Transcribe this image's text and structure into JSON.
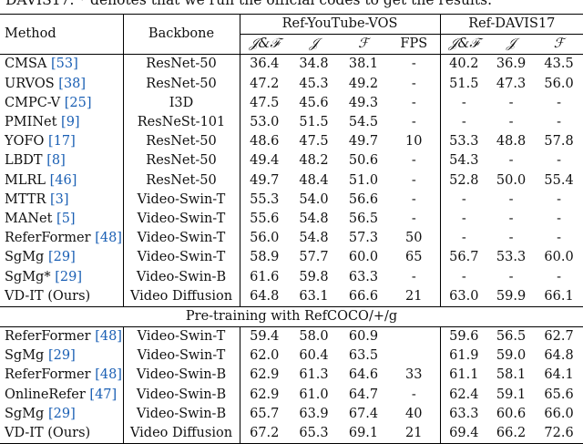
{
  "caption": "DAVIS17. * denotes that we run the official codes to get the results.",
  "headers": {
    "method": "Method",
    "backbone": "Backbone",
    "group1": "Ref-YouTube-VOS",
    "group2": "Ref-DAVIS17",
    "jf": "𝒥&ℱ",
    "j": "𝒥",
    "f": "ℱ",
    "fps": "FPS"
  },
  "section_label": "Pre-training with RefCOCO/+/g",
  "rows_a": [
    {
      "method": "CMSA",
      "ref": "[53]",
      "backbone": "ResNet-50",
      "yt_jf": "36.4",
      "yt_j": "34.8",
      "yt_f": "38.1",
      "fps": "-",
      "dv_jf": "40.2",
      "dv_j": "36.9",
      "dv_f": "43.5"
    },
    {
      "method": "URVOS",
      "ref": "[38]",
      "backbone": "ResNet-50",
      "yt_jf": "47.2",
      "yt_j": "45.3",
      "yt_f": "49.2",
      "fps": "-",
      "dv_jf": "51.5",
      "dv_j": "47.3",
      "dv_f": "56.0"
    },
    {
      "method": "CMPC-V",
      "ref": "[25]",
      "backbone": "I3D",
      "yt_jf": "47.5",
      "yt_j": "45.6",
      "yt_f": "49.3",
      "fps": "-",
      "dv_jf": "-",
      "dv_j": "-",
      "dv_f": "-"
    },
    {
      "method": "PMINet",
      "ref": "[9]",
      "backbone": "ResNeSt-101",
      "yt_jf": "53.0",
      "yt_j": "51.5",
      "yt_f": "54.5",
      "fps": "-",
      "dv_jf": "-",
      "dv_j": "-",
      "dv_f": "-"
    },
    {
      "method": "YOFO",
      "ref": "[17]",
      "backbone": "ResNet-50",
      "yt_jf": "48.6",
      "yt_j": "47.5",
      "yt_f": "49.7",
      "fps": "10",
      "dv_jf": "53.3",
      "dv_j": "48.8",
      "dv_f": "57.8"
    },
    {
      "method": "LBDT",
      "ref": "[8]",
      "backbone": "ResNet-50",
      "yt_jf": "49.4",
      "yt_j": "48.2",
      "yt_f": "50.6",
      "fps": "-",
      "dv_jf": "54.3",
      "dv_j": "-",
      "dv_f": "-"
    },
    {
      "method": "MLRL",
      "ref": "[46]",
      "backbone": "ResNet-50",
      "yt_jf": "49.7",
      "yt_j": "48.4",
      "yt_f": "51.0",
      "fps": "-",
      "dv_jf": "52.8",
      "dv_j": "50.0",
      "dv_f": "55.4"
    },
    {
      "method": "MTTR",
      "ref": "[3]",
      "backbone": "Video-Swin-T",
      "yt_jf": "55.3",
      "yt_j": "54.0",
      "yt_f": "56.6",
      "fps": "-",
      "dv_jf": "-",
      "dv_j": "-",
      "dv_f": "-"
    },
    {
      "method": "MANet",
      "ref": "[5]",
      "backbone": "Video-Swin-T",
      "yt_jf": "55.6",
      "yt_j": "54.8",
      "yt_f": "56.5",
      "fps": "-",
      "dv_jf": "-",
      "dv_j": "-",
      "dv_f": "-"
    },
    {
      "method": "ReferFormer",
      "ref": "[48]",
      "backbone": "Video-Swin-T",
      "yt_jf": "56.0",
      "yt_j": "54.8",
      "yt_f": "57.3",
      "fps": "50",
      "dv_jf": "-",
      "dv_j": "-",
      "dv_f": "-"
    },
    {
      "method": "SgMg",
      "ref": "[29]",
      "backbone": "Video-Swin-T",
      "yt_jf": "58.9",
      "yt_j": "57.7",
      "yt_f": "60.0",
      "fps": "65",
      "dv_jf": "56.7",
      "dv_j": "53.3",
      "dv_f": "60.0"
    },
    {
      "method": "SgMg*",
      "ref": "[29]",
      "backbone": "Video-Swin-B",
      "yt_jf": "61.6",
      "yt_j": "59.8",
      "yt_f": "63.3",
      "fps": "-",
      "dv_jf": "-",
      "dv_j": "-",
      "dv_f": "-"
    },
    {
      "method": "VD-IT (Ours)",
      "ref": "",
      "backbone": "Video Diffusion",
      "yt_jf": "64.8",
      "yt_j": "63.1",
      "yt_f": "66.6",
      "fps": "21",
      "dv_jf": "63.0",
      "dv_j": "59.9",
      "dv_f": "66.1",
      "bold": true
    }
  ],
  "rows_b": [
    {
      "method": "ReferFormer",
      "ref": "[48]",
      "backbone": "Video-Swin-T",
      "yt_jf": "59.4",
      "yt_j": "58.0",
      "yt_f": "60.9",
      "fps": "",
      "dv_jf": "59.6",
      "dv_j": "56.5",
      "dv_f": "62.7"
    },
    {
      "method": "SgMg",
      "ref": "[29]",
      "backbone": "Video-Swin-T",
      "yt_jf": "62.0",
      "yt_j": "60.4",
      "yt_f": "63.5",
      "fps": "",
      "dv_jf": "61.9",
      "dv_j": "59.0",
      "dv_f": "64.8"
    },
    {
      "method": "ReferFormer",
      "ref": "[48]",
      "backbone": "Video-Swin-B",
      "yt_jf": "62.9",
      "yt_j": "61.3",
      "yt_f": "64.6",
      "fps": "33",
      "dv_jf": "61.1",
      "dv_j": "58.1",
      "dv_f": "64.1"
    },
    {
      "method": "OnlineRefer",
      "ref": "[47]",
      "backbone": "Video-Swin-B",
      "yt_jf": "62.9",
      "yt_j": "61.0",
      "yt_f": "64.7",
      "fps": "-",
      "dv_jf": "62.4",
      "dv_j": "59.1",
      "dv_f": "65.6"
    },
    {
      "method": "SgMg",
      "ref": "[29]",
      "backbone": "Video-Swin-B",
      "yt_jf": "65.7",
      "yt_j": "63.9",
      "yt_f": "67.4",
      "fps": "40",
      "dv_jf": "63.3",
      "dv_j": "60.6",
      "dv_f": "66.0"
    },
    {
      "method": "VD-IT (Ours)",
      "ref": "",
      "backbone": "Video Diffusion",
      "yt_jf": "67.2",
      "yt_j": "65.3",
      "yt_f": "69.1",
      "fps": "21",
      "dv_jf": "69.4",
      "dv_j": "66.2",
      "dv_f": "72.6",
      "bold": true
    }
  ]
}
